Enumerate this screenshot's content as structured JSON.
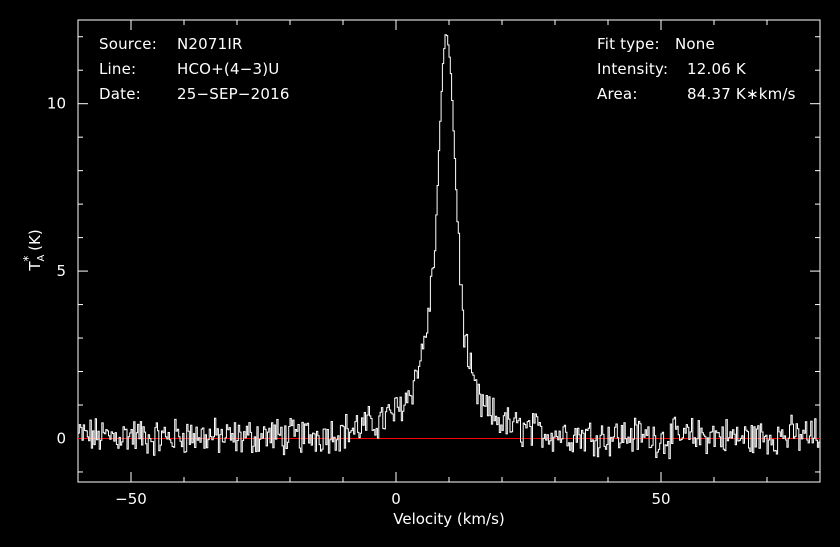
{
  "header_left": {
    "source_label": "Source:",
    "source_value": "N2071IR",
    "line_label": "Line:",
    "line_value": "HCO+(4−3)U",
    "date_label": "Date:",
    "date_value": "25−SEP−2016"
  },
  "header_right": {
    "fit_label": "Fit type:",
    "fit_value": "None",
    "intensity_label": "Intensity:",
    "intensity_value": "12.06 K",
    "area_label": "Area:",
    "area_value": "84.37 K∗km/s"
  },
  "chart_data": {
    "type": "line",
    "xlabel": "Velocity (km/s)",
    "ylabel_main": "T",
    "ylabel_sup": "*",
    "ylabel_sub": "A",
    "ylabel_unit": " (K)",
    "xlim": [
      -60,
      80
    ],
    "ylim": [
      -1.3,
      12.5
    ],
    "xticks": [
      -50,
      0,
      50
    ],
    "xtick_labels": [
      "−50",
      "0",
      "50"
    ],
    "yticks": [
      0,
      5,
      10
    ],
    "ytick_labels": [
      "0",
      "5",
      "10"
    ],
    "grid": false,
    "colors": {
      "spectrum": "#ffffff",
      "baseline": "#ff0000",
      "axes": "#ffffff",
      "background": "#000000"
    },
    "baseline": {
      "y": 0,
      "x_start": -60,
      "x_end": 80
    },
    "series": [
      {
        "x": [
          -60,
          -55,
          -50,
          -45,
          -40,
          -35,
          -30,
          -25,
          -20,
          -15,
          -10,
          -5,
          -2,
          0,
          2,
          3,
          4,
          5,
          6,
          7,
          7.5,
          8,
          8.5,
          9,
          9.5,
          10,
          10.5,
          11,
          11.5,
          12,
          12.5,
          13,
          14,
          15,
          16,
          18,
          20,
          22,
          25,
          30,
          35,
          40,
          45,
          50,
          55,
          60,
          65,
          70,
          75,
          80
        ],
        "y": [
          0.1,
          0.05,
          0.1,
          0.0,
          0.1,
          0.05,
          0.0,
          0.1,
          0.05,
          0.1,
          0.2,
          0.4,
          0.6,
          0.8,
          1.2,
          1.5,
          2.0,
          2.6,
          3.5,
          5.0,
          6.2,
          8.0,
          10.0,
          11.5,
          12.06,
          11.8,
          10.5,
          8.8,
          7.0,
          5.2,
          4.0,
          3.0,
          2.0,
          1.4,
          1.0,
          0.7,
          0.5,
          0.35,
          0.25,
          0.15,
          0.1,
          0.05,
          0.1,
          0.0,
          0.05,
          0.1,
          0.0,
          0.05,
          0.1,
          0.05
        ]
      }
    ]
  }
}
